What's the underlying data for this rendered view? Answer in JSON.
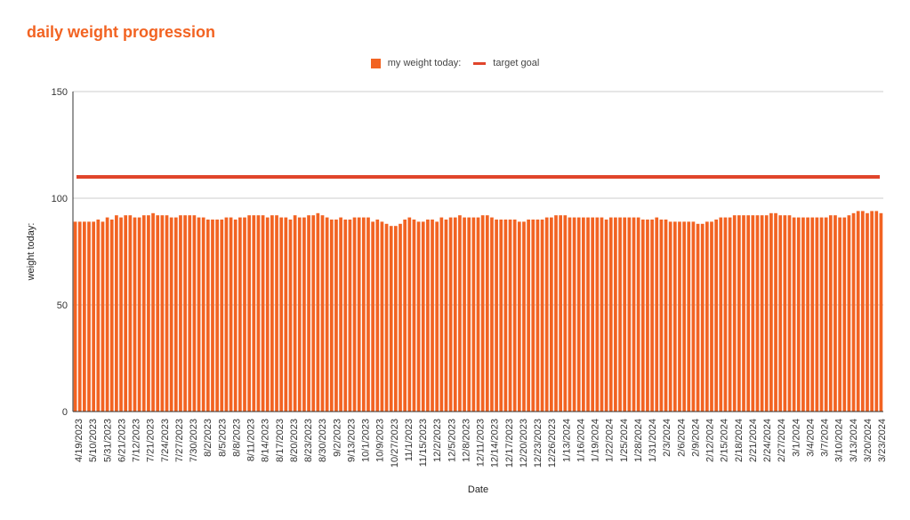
{
  "chart_data": {
    "type": "bar",
    "title": "daily weight progression",
    "xlabel": "Date",
    "ylabel": "weight today:",
    "ylim": [
      0,
      150
    ],
    "yticks": [
      0,
      50,
      100,
      150
    ],
    "legend_position": "top-center",
    "series": [
      {
        "name": "my weight today:",
        "type": "bar",
        "color": "#f26322",
        "values": [
          89,
          89,
          89,
          89,
          89,
          90,
          89,
          91,
          90,
          92,
          91,
          92,
          92,
          91,
          91,
          92,
          92,
          93,
          92,
          92,
          92,
          91,
          91,
          92,
          92,
          92,
          92,
          91,
          91,
          90,
          90,
          90,
          90,
          91,
          91,
          90,
          91,
          91,
          92,
          92,
          92,
          92,
          91,
          92,
          92,
          91,
          91,
          90,
          92,
          91,
          91,
          92,
          92,
          93,
          92,
          91,
          90,
          90,
          91,
          90,
          90,
          91,
          91,
          91,
          91,
          89,
          90,
          89,
          88,
          87,
          87,
          88,
          90,
          91,
          90,
          89,
          89,
          90,
          90,
          89,
          91,
          90,
          91,
          91,
          92,
          91,
          91,
          91,
          91,
          92,
          92,
          91,
          90,
          90,
          90,
          90,
          90,
          89,
          89,
          90,
          90,
          90,
          90,
          91,
          91,
          92,
          92,
          92,
          91,
          91,
          91,
          91,
          91,
          91,
          91,
          91,
          90,
          91,
          91,
          91,
          91,
          91,
          91,
          91,
          90,
          90,
          90,
          91,
          90,
          90,
          89,
          89,
          89,
          89,
          89,
          89,
          88,
          88,
          89,
          89,
          90,
          91,
          91,
          91,
          92,
          92,
          92,
          92,
          92,
          92,
          92,
          92,
          93,
          93,
          92,
          92,
          92,
          91,
          91,
          91,
          91,
          91,
          91,
          91,
          91,
          92,
          92,
          91,
          91,
          92,
          93,
          94,
          94,
          93,
          94,
          94,
          93
        ]
      },
      {
        "name": "target goal",
        "type": "line",
        "color": "#e0452b",
        "value": 110
      }
    ],
    "x_tick_labels": [
      "4/19/2023",
      "5/10/2023",
      "5/31/2023",
      "6/21/2023",
      "7/12/2023",
      "7/21/2023",
      "7/24/2023",
      "7/27/2023",
      "7/30/2023",
      "8/2/2023",
      "8/5/2023",
      "8/8/2023",
      "8/11/2023",
      "8/14/2023",
      "8/17/2023",
      "8/20/2023",
      "8/23/2023",
      "8/30/2023",
      "9/2/2023",
      "9/13/2023",
      "10/1/2023",
      "10/9/2023",
      "10/27/2023",
      "11/1/2023",
      "11/15/2023",
      "12/2/2023",
      "12/5/2023",
      "12/8/2023",
      "12/11/2023",
      "12/14/2023",
      "12/17/2023",
      "12/20/2023",
      "12/23/2023",
      "12/26/2023",
      "1/13/2024",
      "1/16/2024",
      "1/19/2024",
      "1/22/2024",
      "1/25/2024",
      "1/28/2024",
      "1/31/2024",
      "2/3/2024",
      "2/6/2024",
      "2/9/2024",
      "2/12/2024",
      "2/15/2024",
      "2/18/2024",
      "2/21/2024",
      "2/24/2024",
      "2/27/2024",
      "3/1/2024",
      "3/4/2024",
      "3/7/2024",
      "3/10/2024",
      "3/13/2024",
      "3/20/2024",
      "3/23/2024"
    ]
  }
}
